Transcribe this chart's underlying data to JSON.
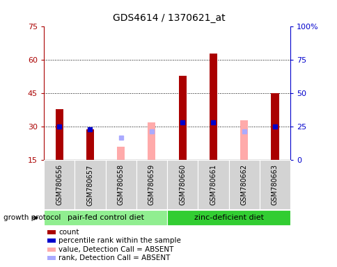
{
  "title": "GDS4614 / 1370621_at",
  "samples": [
    "GSM780656",
    "GSM780657",
    "GSM780658",
    "GSM780659",
    "GSM780660",
    "GSM780661",
    "GSM780662",
    "GSM780663"
  ],
  "count_values": [
    38,
    29,
    null,
    null,
    53,
    63,
    null,
    45
  ],
  "count_absent_values": [
    null,
    null,
    21,
    32,
    null,
    null,
    33,
    null
  ],
  "rank_values": [
    30,
    29,
    null,
    null,
    32,
    32,
    null,
    30
  ],
  "rank_absent_values": [
    null,
    null,
    25,
    28,
    null,
    null,
    28,
    null
  ],
  "ylim": [
    15,
    75
  ],
  "yticks_left": [
    15,
    30,
    45,
    60,
    75
  ],
  "yticks_right_vals": [
    0,
    25,
    50,
    75,
    100
  ],
  "yticks_right_pos": [
    15,
    30,
    45,
    60,
    75
  ],
  "group1_label": "pair-fed control diet",
  "group2_label": "zinc-deficient diet",
  "color_count": "#aa0000",
  "color_rank": "#0000cc",
  "color_count_absent": "#ffaaaa",
  "color_rank_absent": "#aaaaff",
  "color_group1": "#90ee90",
  "color_group2": "#32cd32",
  "color_sample_bg": "#d3d3d3",
  "legend_labels": [
    "count",
    "percentile rank within the sample",
    "value, Detection Call = ABSENT",
    "rank, Detection Call = ABSENT"
  ],
  "bar_width": 0.25
}
